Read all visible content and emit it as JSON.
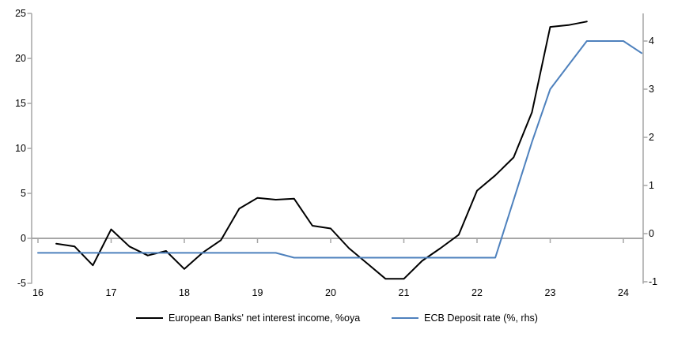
{
  "chart_data": {
    "type": "line",
    "title": "",
    "grid": "single horizontal zero gridline only",
    "legend_position": "bottom-center",
    "x_axis": {
      "ticks": [
        16,
        17,
        18,
        19,
        20,
        21,
        22,
        23,
        24
      ],
      "range": [
        16,
        24.45
      ],
      "tick_marks_on_zero_line": true
    },
    "left_axis": {
      "ticks": [
        25,
        20,
        15,
        10,
        5,
        0,
        -5
      ],
      "range": [
        -5,
        25
      ]
    },
    "right_axis": {
      "ticks": [
        4,
        3,
        2,
        1,
        0,
        -1
      ],
      "range": [
        -1,
        4.6
      ]
    },
    "series": [
      {
        "name": "European Banks' net interest income, %oya",
        "axis": "left",
        "color": "#000000",
        "x": [
          16.25,
          16.5,
          16.75,
          17.0,
          17.25,
          17.5,
          17.75,
          18.0,
          18.25,
          18.5,
          18.75,
          19.0,
          19.25,
          19.5,
          19.75,
          20.0,
          20.25,
          20.5,
          20.75,
          21.0,
          21.25,
          21.5,
          21.75,
          22.0,
          22.25,
          22.5,
          22.75,
          23.0,
          23.25,
          23.5
        ],
        "y": [
          -0.6,
          -0.9,
          -3.0,
          1.0,
          -0.9,
          -1.9,
          -1.4,
          -3.4,
          -1.6,
          -0.2,
          3.3,
          4.5,
          4.3,
          4.4,
          1.4,
          1.1,
          -1.1,
          -2.8,
          -4.5,
          -4.5,
          -2.5,
          -1.1,
          0.4,
          5.3,
          7.0,
          9.0,
          14.0,
          23.5,
          23.7,
          24.1
        ]
      },
      {
        "name": "ECB Deposit rate (%, rhs)",
        "axis": "right",
        "color": "#4E81BD",
        "x": [
          16.0,
          16.25,
          16.5,
          16.75,
          17.0,
          17.25,
          17.5,
          17.75,
          18.0,
          18.25,
          18.5,
          18.75,
          19.0,
          19.25,
          19.5,
          19.75,
          20.0,
          20.25,
          20.5,
          20.75,
          21.0,
          21.25,
          21.5,
          21.75,
          22.0,
          22.25,
          22.5,
          22.75,
          23.0,
          23.25,
          23.5,
          23.75,
          24.0,
          24.25
        ],
        "y": [
          -0.4,
          -0.4,
          -0.4,
          -0.4,
          -0.4,
          -0.4,
          -0.4,
          -0.4,
          -0.4,
          -0.4,
          -0.4,
          -0.4,
          -0.4,
          -0.4,
          -0.5,
          -0.5,
          -0.5,
          -0.5,
          -0.5,
          -0.5,
          -0.5,
          -0.5,
          -0.5,
          -0.5,
          -0.5,
          -0.5,
          0.7,
          1.9,
          3.0,
          3.5,
          4.0,
          4.0,
          4.0,
          3.75
        ]
      }
    ]
  },
  "legend": {
    "items": [
      {
        "label": "European Banks' net interest income, %oya",
        "color": "#000000"
      },
      {
        "label": "ECB Deposit rate (%, rhs)",
        "color": "#4E81BD"
      }
    ]
  },
  "colors": {
    "axis": "#A6A6A6",
    "zero_line": "#A6A6A6",
    "text": "#000000",
    "background": "#FFFFFF"
  }
}
